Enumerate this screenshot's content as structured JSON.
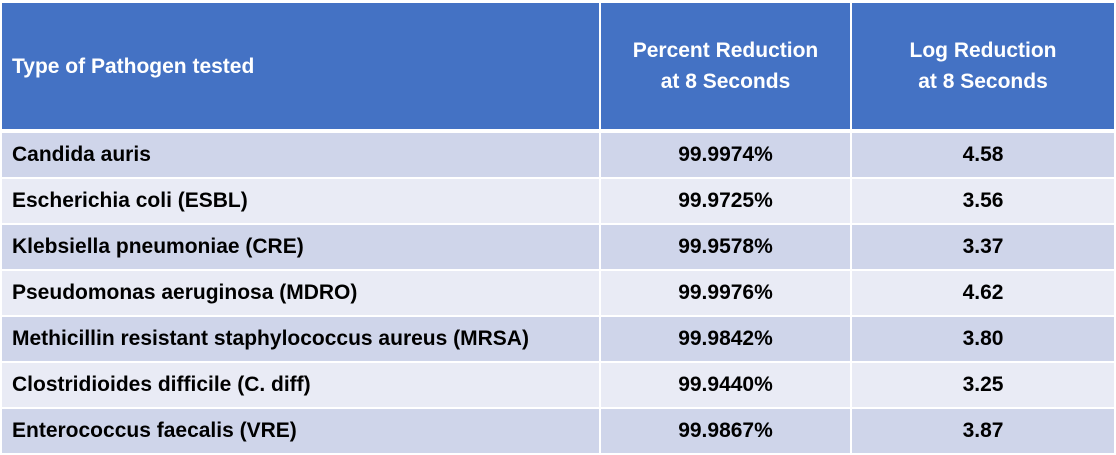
{
  "table": {
    "headers": {
      "pathogen": "Type of Pathogen tested",
      "percent_line1": "Percent Reduction",
      "percent_line2": "at 8 Seconds",
      "log_line1": "Log Reduction",
      "log_line2": "at 8 Seconds"
    },
    "rows": [
      {
        "pathogen": "Candida auris",
        "percent": "99.9974%",
        "log": "4.58"
      },
      {
        "pathogen": "Escherichia coli (ESBL)",
        "percent": "99.9725%",
        "log": "3.56"
      },
      {
        "pathogen": "Klebsiella pneumoniae (CRE)",
        "percent": "99.9578%",
        "log": "3.37"
      },
      {
        "pathogen": "Pseudomonas aeruginosa (MDRO)",
        "percent": "99.9976%",
        "log": "4.62"
      },
      {
        "pathogen": "Methicillin resistant staphylococcus aureus (MRSA)",
        "percent": "99.9842%",
        "log": "3.80"
      },
      {
        "pathogen": "Clostridioides difficile (C. diff)",
        "percent": "99.9440%",
        "log": "3.25"
      },
      {
        "pathogen": "Enterococcus faecalis (VRE)",
        "percent": "99.9867%",
        "log": "3.87"
      }
    ]
  },
  "colors": {
    "header_bg": "#4472c4",
    "row_odd": "#cfd5ea",
    "row_even": "#e9ebf5"
  }
}
